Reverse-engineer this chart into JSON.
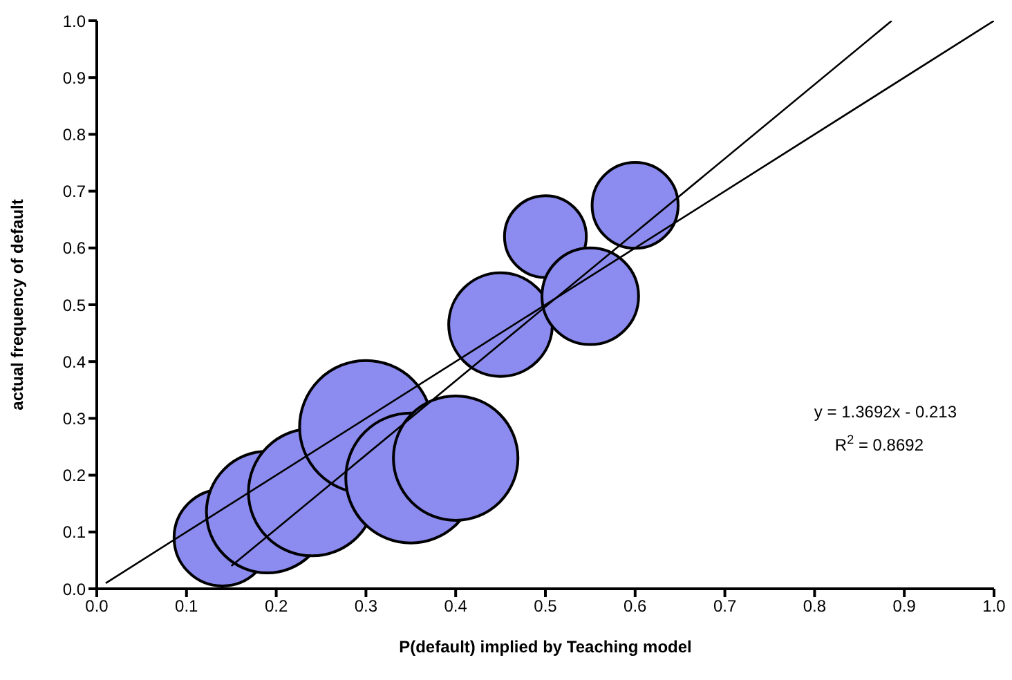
{
  "chart_data": {
    "type": "bubble",
    "xlabel": "P(default) implied by Teaching model",
    "ylabel": "actual frequency of default",
    "xlim": [
      0,
      1
    ],
    "ylim": [
      0,
      1
    ],
    "xticks": [
      {
        "value": 0,
        "label": "0.0"
      },
      0.1,
      0.2,
      0.3,
      0.4,
      0.5,
      0.6,
      0.7,
      0.8,
      0.9,
      {
        "value": 1,
        "label": "1.0"
      }
    ],
    "yticks": [
      {
        "value": 0,
        "label": "0.0"
      },
      0.1,
      0.2,
      0.3,
      0.4,
      0.5,
      0.6,
      0.7,
      0.8,
      0.9,
      {
        "value": 1,
        "label": "1.0"
      }
    ],
    "annotations": [
      "y = 1.3692x - 0.213",
      "R$^{2}$ = 0.8692"
    ],
    "series": [
      {
        "color": "#8c8cf0",
        "x": [
          0.14,
          0.19,
          0.24,
          0.3,
          0.35,
          0.4,
          0.45,
          0.5,
          0.55,
          0.6
        ],
        "values": [
          0.09,
          0.135,
          0.17,
          0.285,
          0.195,
          0.23,
          0.465,
          0.62,
          0.515,
          0.675
        ],
        "sizes": [
          0.53,
          0.84,
          0.92,
          1,
          0.96,
          0.88,
          0.61,
          0.38,
          0.53,
          0.42
        ]
      },
      {
        "type": "line",
        "color": "#000000",
        "x": [
          0.15,
          0.886
        ],
        "values": [
          0.04,
          1
        ]
      },
      {
        "type": "line",
        "color": "#000000",
        "x": [
          0.01,
          1
        ],
        "values": [
          0.01,
          1
        ]
      }
    ]
  }
}
